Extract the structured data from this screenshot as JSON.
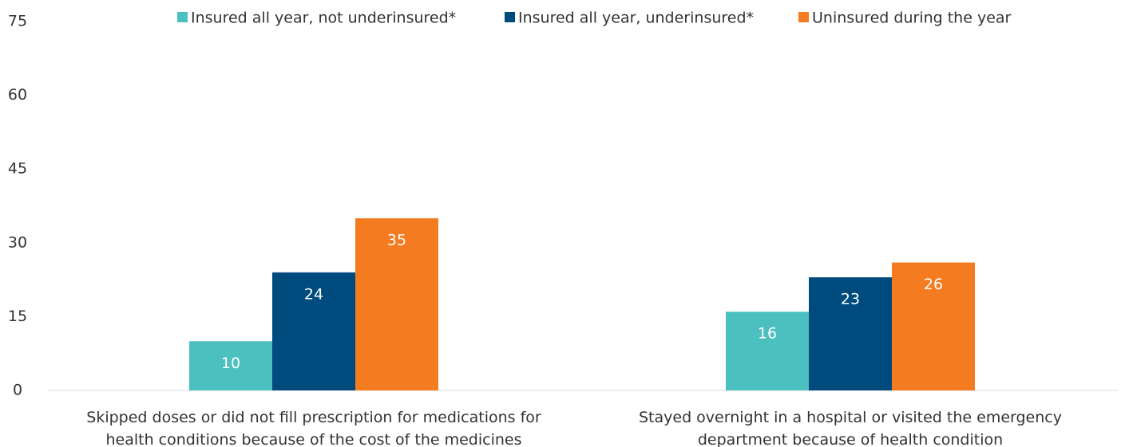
{
  "chart_data": {
    "type": "bar",
    "categories": [
      "Skipped doses or did not fill prescription for medications for health conditions because of the cost of the medicines",
      "Stayed overnight in a hospital or visited the emergency department because of health condition"
    ],
    "series": [
      {
        "name": "Insured all year, not underinsured*",
        "color": "#4cbfbf",
        "values": [
          10,
          16
        ]
      },
      {
        "name": "Insured all year, underinsured*",
        "color": "#004b7d",
        "values": [
          24,
          23
        ]
      },
      {
        "name": "Uninsured during the year",
        "color": "#f47b20",
        "values": [
          35,
          26
        ]
      }
    ],
    "ylim": [
      0,
      75
    ],
    "yticks": [
      0,
      15,
      30,
      45,
      60,
      75
    ],
    "grid": false,
    "legend": "top"
  }
}
